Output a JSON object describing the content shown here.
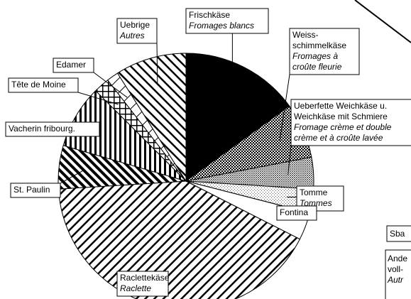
{
  "chart_data": {
    "type": "pie",
    "categories": [
      [
        "Frischkäse"
      ],
      [
        "Weiss-",
        "schimmelkäse"
      ],
      [
        "Ueberfette Weichkäse u.",
        "Weichkäse mit Schmiere"
      ],
      [
        "Tomme"
      ],
      [
        "Fontina"
      ],
      [
        "Raclettekäse"
      ],
      [
        "St. Paulin"
      ],
      [
        "Vacherin fribourg."
      ],
      [
        "Tête de Moine"
      ],
      [
        "Edamer"
      ],
      [
        "Uebrige"
      ]
    ],
    "categories_fr": [
      [
        "Fromages blancs"
      ],
      [
        "Fromages à",
        "croûte fleurie"
      ],
      [
        "Fromage crème et double",
        "crème et à croûte lavée"
      ],
      [
        "Tommes"
      ],
      [],
      [
        "Raclette"
      ],
      [],
      [],
      [],
      [],
      [
        "Autres"
      ]
    ],
    "values": [
      15,
      7,
      4,
      3,
      3.5,
      41.5,
      5.5,
      8,
      2,
      1.5,
      9
    ],
    "fills": [
      "solid",
      "dots",
      "fine-dots",
      "stipple",
      "white",
      "diagonal",
      "thick-diagonal",
      "vertical",
      "grid",
      "white-diagonal",
      "back-diagonal"
    ],
    "annotations": [
      "Sba",
      "Ande",
      "voll-",
      "Autr"
    ]
  }
}
